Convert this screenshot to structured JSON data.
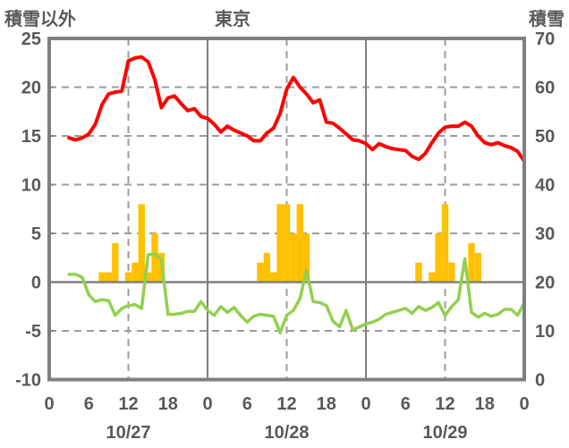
{
  "header": {
    "left_axis_title": "積雪以外",
    "chart_title": "東京",
    "right_axis_title": "積雪"
  },
  "chart_data": {
    "type": "combo: bar + 2 lines, dual y-axis",
    "title": "東京",
    "x_unit": "hour of day over 3 days",
    "x_range": [
      0,
      72
    ],
    "grid": "solid vertical at day boundaries (0h), dashed vertical at 12h; dashed horizontal gridlines; solid zero line",
    "left_axis": {
      "title": "積雪以外",
      "min": -10,
      "max": 25,
      "tick_step": 5,
      "ticks": [
        25,
        20,
        15,
        10,
        5,
        0,
        -5,
        -10
      ]
    },
    "right_axis": {
      "title": "積雪",
      "min": 0,
      "max": 70,
      "tick_step": 10,
      "ticks": [
        70,
        60,
        50,
        40,
        30,
        20,
        10,
        0
      ]
    },
    "x_axis": {
      "hour_ticks": [
        0,
        6,
        12,
        18,
        24,
        30,
        36,
        42,
        48,
        54,
        60,
        66,
        72
      ],
      "hour_labels": [
        "0",
        "6",
        "12",
        "18",
        "0",
        "6",
        "12",
        "18",
        "0",
        "6",
        "12",
        "18",
        "0"
      ],
      "date_labels": [
        {
          "hour": 12,
          "label": "10/27"
        },
        {
          "hour": 36,
          "label": "10/28"
        },
        {
          "hour": 60,
          "label": "10/29"
        }
      ]
    },
    "colors": {
      "red_line": "#ff0000",
      "green_line": "#92d050",
      "bars": "#ffc000",
      "grid": "#9c9c9c",
      "solid_lines": "#808080",
      "border": "#7f7f7f",
      "text": "#595959",
      "background": "#ffffff"
    },
    "series": [
      {
        "name": "red_line",
        "type": "line",
        "axis": "left",
        "color": "#ff0000",
        "points": [
          [
            3,
            14.8
          ],
          [
            4,
            14.6
          ],
          [
            5,
            14.8
          ],
          [
            6,
            15.2
          ],
          [
            7,
            16.2
          ],
          [
            8,
            18.2
          ],
          [
            9,
            19.3
          ],
          [
            10,
            19.5
          ],
          [
            11,
            19.6
          ],
          [
            12,
            22.7
          ],
          [
            13,
            23.0
          ],
          [
            14,
            23.1
          ],
          [
            15,
            22.6
          ],
          [
            16,
            20.8
          ],
          [
            17,
            17.9
          ],
          [
            18,
            18.9
          ],
          [
            19,
            19.1
          ],
          [
            20,
            18.3
          ],
          [
            21,
            17.6
          ],
          [
            22,
            17.8
          ],
          [
            23,
            17.0
          ],
          [
            24,
            16.8
          ],
          [
            25,
            16.2
          ],
          [
            26,
            15.4
          ],
          [
            27,
            16.0
          ],
          [
            28,
            15.6
          ],
          [
            29,
            15.3
          ],
          [
            30,
            15.0
          ],
          [
            31,
            14.5
          ],
          [
            32,
            14.5
          ],
          [
            33,
            15.3
          ],
          [
            34,
            15.8
          ],
          [
            35,
            17.3
          ],
          [
            36,
            19.8
          ],
          [
            37,
            21.0
          ],
          [
            38,
            20.0
          ],
          [
            39,
            19.3
          ],
          [
            40,
            18.4
          ],
          [
            41,
            18.7
          ],
          [
            42,
            16.4
          ],
          [
            43,
            16.3
          ],
          [
            44,
            15.8
          ],
          [
            45,
            15.2
          ],
          [
            46,
            14.6
          ],
          [
            47,
            14.5
          ],
          [
            48,
            14.2
          ],
          [
            49,
            13.6
          ],
          [
            50,
            14.2
          ],
          [
            51,
            13.9
          ],
          [
            52,
            13.7
          ],
          [
            53,
            13.6
          ],
          [
            54,
            13.5
          ],
          [
            55,
            12.9
          ],
          [
            56,
            12.6
          ],
          [
            57,
            13.2
          ],
          [
            58,
            14.3
          ],
          [
            59,
            15.3
          ],
          [
            60,
            15.9
          ],
          [
            61,
            16.0
          ],
          [
            62,
            16.0
          ],
          [
            63,
            16.4
          ],
          [
            64,
            16.0
          ],
          [
            65,
            15.0
          ],
          [
            66,
            14.3
          ],
          [
            67,
            14.1
          ],
          [
            68,
            14.3
          ],
          [
            69,
            14.0
          ],
          [
            70,
            13.8
          ],
          [
            71,
            13.4
          ],
          [
            72,
            12.4
          ]
        ]
      },
      {
        "name": "green_line",
        "type": "line",
        "axis": "left",
        "color": "#92d050",
        "points": [
          [
            3,
            0.8
          ],
          [
            4,
            0.8
          ],
          [
            5,
            0.5
          ],
          [
            6,
            -1.3
          ],
          [
            7,
            -2.0
          ],
          [
            8,
            -1.8
          ],
          [
            9,
            -1.9
          ],
          [
            10,
            -3.4
          ],
          [
            11,
            -2.7
          ],
          [
            12,
            -2.4
          ],
          [
            13,
            -2.3
          ],
          [
            14,
            -2.7
          ],
          [
            15,
            2.8
          ],
          [
            16,
            2.9
          ],
          [
            17,
            2.3
          ],
          [
            18,
            -3.3
          ],
          [
            19,
            -3.3
          ],
          [
            20,
            -3.2
          ],
          [
            21,
            -3.0
          ],
          [
            22,
            -3.0
          ],
          [
            23,
            -2.0
          ],
          [
            24,
            -2.9
          ],
          [
            25,
            -3.4
          ],
          [
            26,
            -2.5
          ],
          [
            27,
            -3.1
          ],
          [
            28,
            -2.6
          ],
          [
            29,
            -3.4
          ],
          [
            30,
            -4.1
          ],
          [
            31,
            -3.5
          ],
          [
            32,
            -3.3
          ],
          [
            33,
            -3.4
          ],
          [
            34,
            -3.5
          ],
          [
            35,
            -5.2
          ],
          [
            36,
            -3.4
          ],
          [
            37,
            -2.9
          ],
          [
            38,
            -1.7
          ],
          [
            39,
            1.2
          ],
          [
            40,
            -2.0
          ],
          [
            41,
            -2.1
          ],
          [
            42,
            -2.4
          ],
          [
            43,
            -4.0
          ],
          [
            44,
            -4.6
          ],
          [
            45,
            -2.9
          ],
          [
            46,
            -4.9
          ],
          [
            47,
            -4.6
          ],
          [
            48,
            -4.3
          ],
          [
            49,
            -4.1
          ],
          [
            50,
            -3.8
          ],
          [
            51,
            -3.3
          ],
          [
            52,
            -3.1
          ],
          [
            53,
            -2.9
          ],
          [
            54,
            -2.7
          ],
          [
            55,
            -3.2
          ],
          [
            56,
            -2.5
          ],
          [
            57,
            -2.9
          ],
          [
            58,
            -2.6
          ],
          [
            59,
            -2.1
          ],
          [
            60,
            -3.4
          ],
          [
            61,
            -2.5
          ],
          [
            62,
            -1.8
          ],
          [
            63,
            2.4
          ],
          [
            64,
            -3.1
          ],
          [
            65,
            -3.6
          ],
          [
            66,
            -3.2
          ],
          [
            67,
            -3.5
          ],
          [
            68,
            -3.3
          ],
          [
            69,
            -2.8
          ],
          [
            70,
            -2.8
          ],
          [
            71,
            -3.4
          ],
          [
            72,
            -2.1
          ]
        ]
      },
      {
        "name": "bars",
        "type": "bar",
        "axis": "left",
        "color": "#ffc000",
        "points": [
          [
            8,
            1
          ],
          [
            9,
            1
          ],
          [
            10,
            4
          ],
          [
            12,
            1
          ],
          [
            13,
            2
          ],
          [
            14,
            8
          ],
          [
            15,
            1
          ],
          [
            16,
            5
          ],
          [
            17,
            3
          ],
          [
            32,
            2
          ],
          [
            33,
            3
          ],
          [
            34,
            1
          ],
          [
            35,
            8
          ],
          [
            36,
            8
          ],
          [
            37,
            5
          ],
          [
            38,
            8
          ],
          [
            39,
            5
          ],
          [
            56,
            2
          ],
          [
            58,
            1
          ],
          [
            59,
            5
          ],
          [
            60,
            8
          ],
          [
            61,
            2
          ],
          [
            64,
            4
          ],
          [
            65,
            3
          ]
        ]
      }
    ]
  }
}
